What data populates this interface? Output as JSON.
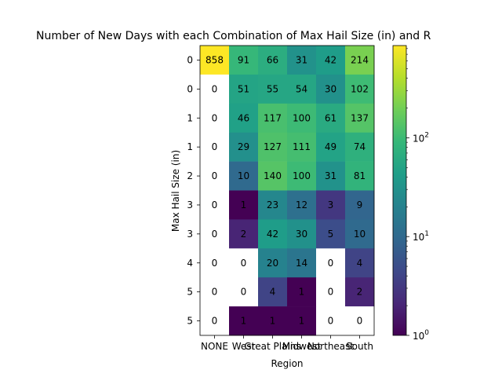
{
  "chart_data": {
    "type": "heatmap",
    "title": "Number of New Days with each Combination of Max Hail Size (in) and R",
    "xlabel": "Region",
    "ylabel": "Max Hail Size (in)",
    "x_categories": [
      "NONE",
      "West",
      "Great Plains",
      "Midwest",
      "Northeast",
      "South"
    ],
    "x_tick_labels": [
      "NONE",
      "West",
      "Great Plains",
      "Midwest",
      "Northeast",
      "South"
    ],
    "y_tick_labels": [
      "0",
      "0",
      "1",
      "1",
      "2",
      "3",
      "3",
      "4",
      "5",
      "5"
    ],
    "values": [
      [
        858,
        91,
        66,
        31,
        42,
        214
      ],
      [
        0,
        51,
        55,
        54,
        30,
        102
      ],
      [
        0,
        46,
        117,
        100,
        61,
        137
      ],
      [
        0,
        29,
        127,
        111,
        49,
        74
      ],
      [
        0,
        10,
        140,
        100,
        31,
        81
      ],
      [
        0,
        1,
        23,
        12,
        3,
        9
      ],
      [
        0,
        2,
        42,
        30,
        5,
        10
      ],
      [
        0,
        0,
        20,
        14,
        0,
        4
      ],
      [
        0,
        0,
        4,
        1,
        0,
        2
      ],
      [
        0,
        1,
        1,
        1,
        0,
        0
      ]
    ],
    "color_scale": "log",
    "colormap": "viridis",
    "zero_color": "#ffffff",
    "vmin": 1,
    "vmax": 858,
    "colorbar": {
      "ticks": [
        1,
        10,
        100
      ],
      "tick_labels": [
        "10^0",
        "10^1",
        "10^2"
      ]
    }
  }
}
